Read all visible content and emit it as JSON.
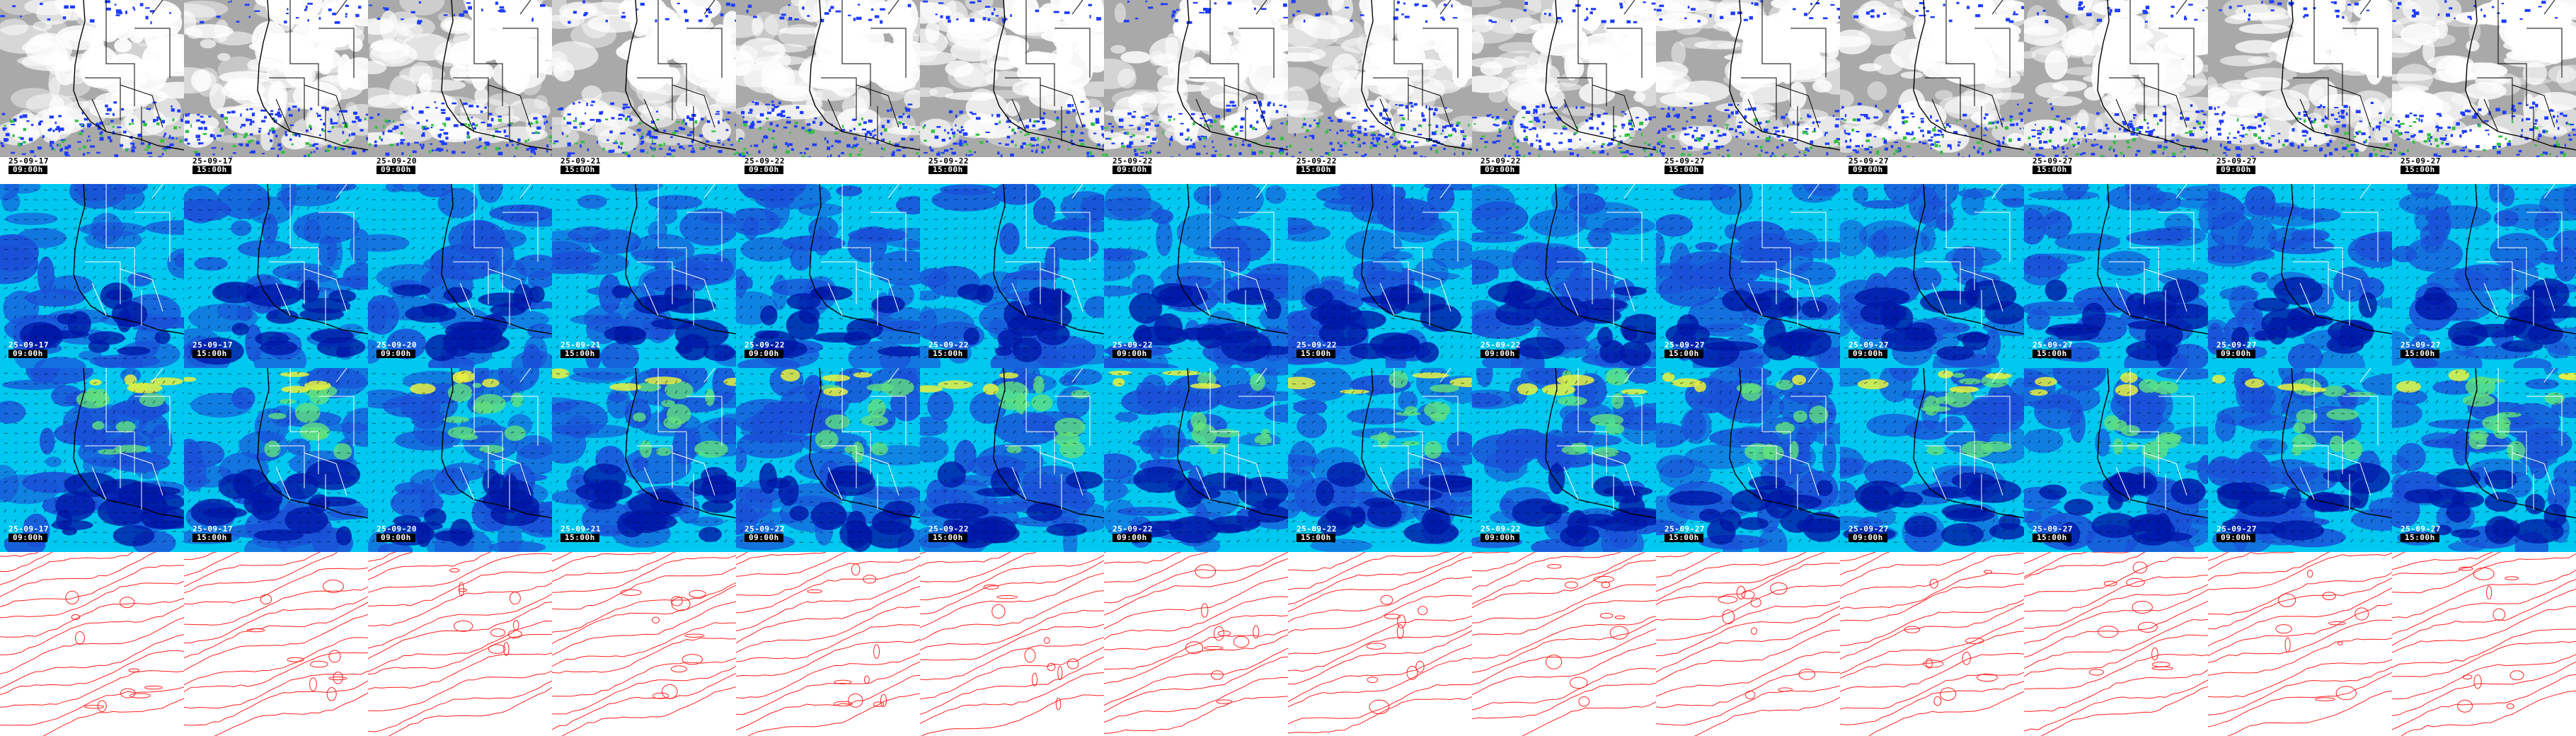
{
  "rows": [
    {
      "name": "satellite",
      "date_color": "#000000"
    },
    {
      "name": "wind-850",
      "date_color": "#ffffff"
    },
    {
      "name": "wind-700",
      "date_color": "#ffffff"
    },
    {
      "name": "pressure-contours",
      "date_color": null
    }
  ],
  "colors": {
    "cloud_gray": "#a9a9a9",
    "cloud_white": "#ffffff",
    "precip_blue": "#1c3cff",
    "precip_green": "#30c040",
    "wind_cyan": "#00c8f0",
    "wind_blue": "#1a50d8",
    "wind_deep": "#0018a8",
    "wind_green": "#60e080",
    "wind_yellow": "#e8f040",
    "contour_red": "#ff2020",
    "coastline": "#000000",
    "border_light": "#ffffff"
  },
  "frames": [
    {
      "date": "25-09-17",
      "time": "09:00h"
    },
    {
      "date": "25-09-17",
      "time": "15:00h"
    },
    {
      "date": "25-09-20",
      "time": "09:00h"
    },
    {
      "date": "25-09-21",
      "time": "15:00h"
    },
    {
      "date": "25-09-22",
      "time": "09:00h"
    },
    {
      "date": "25-09-22",
      "time": "15:00h"
    },
    {
      "date": "25-09-22",
      "time": "09:00h"
    },
    {
      "date": "25-09-22",
      "time": "15:00h"
    },
    {
      "date": "25-09-22",
      "time": "09:00h"
    },
    {
      "date": "25-09-27",
      "time": "15:00h"
    },
    {
      "date": "25-09-27",
      "time": "09:00h"
    },
    {
      "date": "25-09-27",
      "time": "15:00h"
    },
    {
      "date": "25-09-27",
      "time": "09:00h"
    },
    {
      "date": "25-09-27",
      "time": "15:00h"
    }
  ]
}
